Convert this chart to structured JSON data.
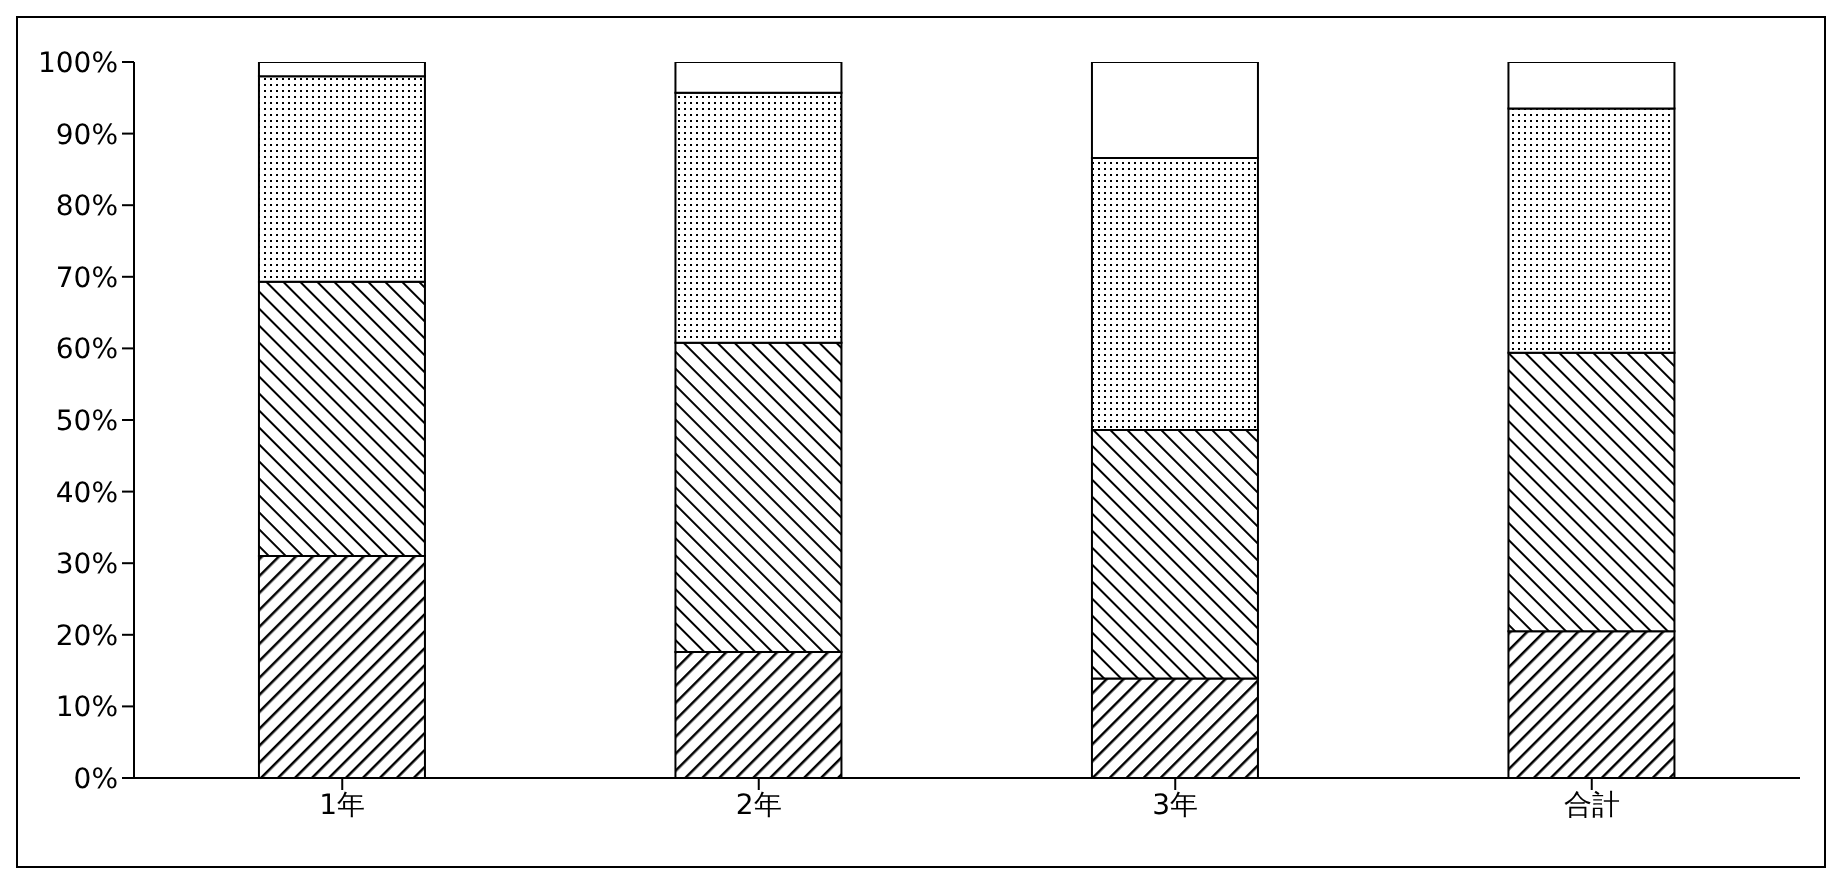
{
  "chart_data": {
    "type": "bar",
    "stacked": true,
    "categories": [
      "1年",
      "2年",
      "3年",
      "合計"
    ],
    "series": [
      {
        "color": "#000000",
        "values": [
          31,
          17.6,
          13.9,
          20.5
        ]
      },
      {
        "color": "#000000",
        "values": [
          38.3,
          43.2,
          34.7,
          38.9
        ]
      },
      {
        "color": "#000000",
        "values": [
          28.7,
          34.9,
          38,
          34.1
        ]
      },
      {
        "color": "#ffffff",
        "values": [
          2,
          4.3,
          13.4,
          6.5
        ]
      }
    ],
    "ylim": [
      0,
      100
    ],
    "yticks": [
      {
        "value": 0,
        "label": "0%"
      },
      {
        "value": 10,
        "label": "10%"
      },
      {
        "value": 20,
        "label": "20%"
      },
      {
        "value": 30,
        "label": "30%"
      },
      {
        "value": 40,
        "label": "40%"
      },
      {
        "value": 50,
        "label": "50%"
      },
      {
        "value": 60,
        "label": "60%"
      },
      {
        "value": 70,
        "label": "70%"
      },
      {
        "value": 80,
        "label": "80%"
      },
      {
        "value": 90,
        "label": "90%"
      },
      {
        "value": 100,
        "label": "100%"
      }
    ],
    "grid": false,
    "legend": false
  }
}
